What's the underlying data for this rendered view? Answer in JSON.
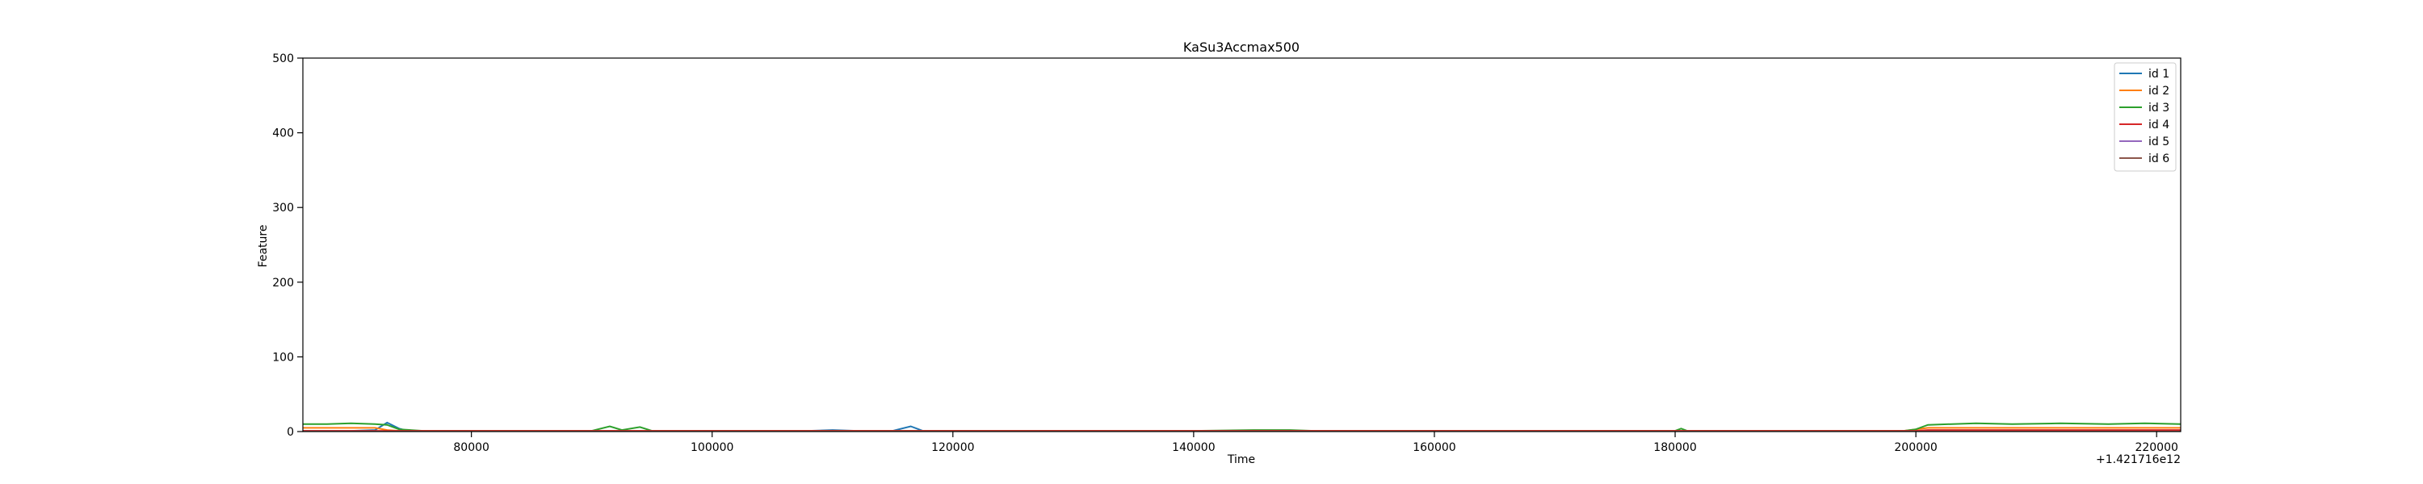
{
  "chart_data": {
    "type": "line",
    "title": "KaSu3Accmax500",
    "xlabel": "Time",
    "ylabel": "Feature",
    "x_offset_label": "+1.421716e12",
    "xlim": [
      66000,
      222000
    ],
    "ylim": [
      0,
      500
    ],
    "x_ticks": [
      80000,
      100000,
      120000,
      140000,
      160000,
      180000,
      200000,
      220000
    ],
    "x_tick_labels": [
      "80000",
      "100000",
      "120000",
      "140000",
      "160000",
      "180000",
      "200000",
      "220000"
    ],
    "y_ticks": [
      0,
      100,
      200,
      300,
      400,
      500
    ],
    "y_tick_labels": [
      "0",
      "100",
      "200",
      "300",
      "400",
      "500"
    ],
    "grid": false,
    "legend_position": "top-right",
    "series": [
      {
        "name": "id 1",
        "color": "#1f77b4",
        "points": [
          [
            66000,
            1
          ],
          [
            70000,
            1
          ],
          [
            72000,
            2
          ],
          [
            73000,
            12
          ],
          [
            74000,
            4
          ],
          [
            75000,
            0
          ],
          [
            78000,
            1
          ],
          [
            80000,
            1
          ],
          [
            84000,
            0
          ],
          [
            88000,
            1
          ],
          [
            92000,
            1
          ],
          [
            96000,
            0
          ],
          [
            100000,
            1
          ],
          [
            104000,
            0
          ],
          [
            108000,
            1
          ],
          [
            110000,
            2
          ],
          [
            112000,
            1
          ],
          [
            115000,
            1
          ],
          [
            116500,
            7
          ],
          [
            117500,
            1
          ],
          [
            120000,
            1
          ],
          [
            124000,
            0
          ],
          [
            128000,
            1
          ],
          [
            132000,
            1
          ],
          [
            136000,
            0
          ],
          [
            140000,
            1
          ],
          [
            144000,
            0
          ],
          [
            148000,
            1
          ],
          [
            152000,
            1
          ],
          [
            156000,
            0
          ],
          [
            160000,
            1
          ],
          [
            164000,
            0
          ],
          [
            168000,
            1
          ],
          [
            172000,
            0
          ],
          [
            176000,
            1
          ],
          [
            180000,
            0
          ],
          [
            184000,
            1
          ],
          [
            188000,
            0
          ],
          [
            192000,
            1
          ],
          [
            196000,
            0
          ],
          [
            200000,
            1
          ],
          [
            204000,
            0
          ],
          [
            208000,
            1
          ],
          [
            212000,
            0
          ],
          [
            216000,
            1
          ],
          [
            222000,
            1
          ]
        ]
      },
      {
        "name": "id 2",
        "color": "#ff7f0e",
        "points": [
          [
            66000,
            5
          ],
          [
            70000,
            5
          ],
          [
            72000,
            5
          ],
          [
            73000,
            2
          ],
          [
            74000,
            1
          ],
          [
            80000,
            1
          ],
          [
            90000,
            1
          ],
          [
            100000,
            1
          ],
          [
            110000,
            1
          ],
          [
            120000,
            1
          ],
          [
            130000,
            1
          ],
          [
            140000,
            1
          ],
          [
            150000,
            1
          ],
          [
            160000,
            1
          ],
          [
            170000,
            1
          ],
          [
            180000,
            1
          ],
          [
            190000,
            1
          ],
          [
            199000,
            1
          ],
          [
            200000,
            3
          ],
          [
            201000,
            5
          ],
          [
            205000,
            5
          ],
          [
            210000,
            5
          ],
          [
            215000,
            5
          ],
          [
            222000,
            5
          ]
        ]
      },
      {
        "name": "id 3",
        "color": "#2ca02c",
        "points": [
          [
            66000,
            10
          ],
          [
            68000,
            10
          ],
          [
            70000,
            11
          ],
          [
            72000,
            10
          ],
          [
            73000,
            9
          ],
          [
            74000,
            3
          ],
          [
            76000,
            1
          ],
          [
            80000,
            1
          ],
          [
            85000,
            1
          ],
          [
            90000,
            1
          ],
          [
            91500,
            7
          ],
          [
            92500,
            2
          ],
          [
            94000,
            6
          ],
          [
            95000,
            1
          ],
          [
            100000,
            1
          ],
          [
            110000,
            1
          ],
          [
            120000,
            1
          ],
          [
            130000,
            1
          ],
          [
            140000,
            1
          ],
          [
            145000,
            2
          ],
          [
            148000,
            2
          ],
          [
            150000,
            1
          ],
          [
            160000,
            1
          ],
          [
            170000,
            1
          ],
          [
            180000,
            1
          ],
          [
            180500,
            4
          ],
          [
            181000,
            1
          ],
          [
            190000,
            1
          ],
          [
            199000,
            1
          ],
          [
            200000,
            3
          ],
          [
            201000,
            9
          ],
          [
            203000,
            10
          ],
          [
            205000,
            11
          ],
          [
            208000,
            10
          ],
          [
            212000,
            11
          ],
          [
            216000,
            10
          ],
          [
            219000,
            11
          ],
          [
            222000,
            10
          ]
        ]
      },
      {
        "name": "id 4",
        "color": "#d62728",
        "points": [
          [
            66000,
            1
          ],
          [
            80000,
            1
          ],
          [
            100000,
            1
          ],
          [
            120000,
            1
          ],
          [
            140000,
            1
          ],
          [
            160000,
            1
          ],
          [
            180000,
            1
          ],
          [
            200000,
            1
          ],
          [
            201000,
            2
          ],
          [
            222000,
            2
          ]
        ]
      },
      {
        "name": "id 5",
        "color": "#9467bd",
        "points": [
          [
            66000,
            0
          ],
          [
            100000,
            0
          ],
          [
            140000,
            0
          ],
          [
            180000,
            0
          ],
          [
            222000,
            0
          ]
        ]
      },
      {
        "name": "id 6",
        "color": "#8c564b",
        "points": [
          [
            66000,
            0
          ],
          [
            100000,
            0
          ],
          [
            140000,
            0
          ],
          [
            180000,
            0
          ],
          [
            222000,
            0
          ]
        ]
      }
    ]
  }
}
